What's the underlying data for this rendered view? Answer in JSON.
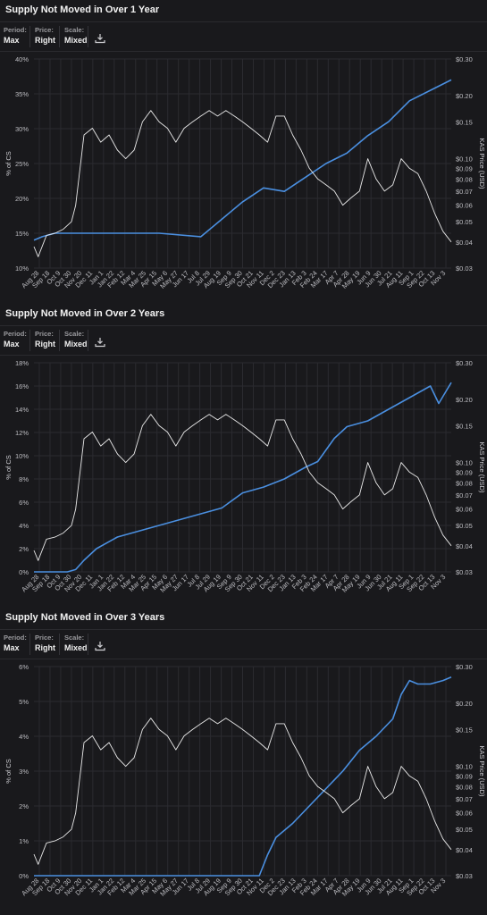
{
  "controls": {
    "period_label": "Period:",
    "period_value": "Max",
    "price_label": "Price:",
    "price_value": "Right",
    "scale_label": "Scale:",
    "scale_value": "Mixed"
  },
  "colors": {
    "supply": "#4a8fe0",
    "price": "#e8e8e8",
    "grid": "#2b2b30",
    "background": "#19191c"
  },
  "chart_data": [
    {
      "type": "line",
      "title": "Supply Not Moved in Over 1 Year",
      "ylabel": "% of CS",
      "y2label": "KAS Price (USD)",
      "ylim": [
        10,
        40
      ],
      "yticks": [
        "10%",
        "15%",
        "20%",
        "25%",
        "30%",
        "35%",
        "40%"
      ],
      "y2scale": "log",
      "y2lim": [
        0.03,
        0.3
      ],
      "y2ticks": [
        "$0.03",
        "$0.04",
        "$0.05",
        "$0.06",
        "$0.07",
        "$0.08",
        "$0.09",
        "$0.10",
        "$0.15",
        "$0.20",
        "$0.30"
      ],
      "x_ticks": [
        "Aug 28",
        "Sep 18",
        "Oct 9",
        "Oct 30",
        "Nov 20",
        "Dec 11",
        "Jan 1",
        "Jan 22",
        "Feb 12",
        "Mar 4",
        "Mar 25",
        "Apr 15",
        "May 6",
        "May 27",
        "Jun 17",
        "Jul 8",
        "Jul 29",
        "Aug 19",
        "Sep 9",
        "Sep 30",
        "Oct 21",
        "Nov 11",
        "Dec 2",
        "Dec 23",
        "Jan 13",
        "Feb 3",
        "Feb 24",
        "Mar 17",
        "Apr 7",
        "Apr 28",
        "May 19",
        "Jun 9",
        "Jun 30",
        "Jul 21",
        "Aug 11",
        "Sep 1",
        "Sep 22",
        "Oct 13",
        "Nov 3"
      ],
      "grid": true,
      "series": [
        {
          "name": "Supply % of CS",
          "axis": "left",
          "x": [
            0,
            2,
            5,
            10,
            20,
            30,
            40,
            50,
            55,
            60,
            65,
            70,
            75,
            80,
            85,
            90,
            95,
            100
          ],
          "values": [
            14,
            14.5,
            15,
            15,
            15,
            15,
            14.5,
            19.5,
            21.5,
            21,
            23,
            25,
            26.5,
            29,
            31,
            34,
            35.5,
            37
          ]
        },
        {
          "name": "KAS Price",
          "axis": "right",
          "x": [
            0,
            1,
            3,
            5,
            7,
            9,
            10,
            12,
            14,
            16,
            18,
            20,
            22,
            24,
            26,
            28,
            30,
            32,
            34,
            36,
            38,
            40,
            42,
            44,
            46,
            48,
            50,
            52,
            54,
            56,
            58,
            60,
            62,
            64,
            66,
            68,
            70,
            72,
            74,
            76,
            78,
            80,
            82,
            84,
            86,
            88,
            90,
            92,
            94,
            96,
            98,
            100
          ],
          "values": [
            0.038,
            0.034,
            0.043,
            0.044,
            0.046,
            0.05,
            0.06,
            0.13,
            0.14,
            0.12,
            0.13,
            0.11,
            0.1,
            0.11,
            0.15,
            0.17,
            0.15,
            0.14,
            0.12,
            0.14,
            0.15,
            0.16,
            0.17,
            0.16,
            0.17,
            0.16,
            0.15,
            0.14,
            0.13,
            0.12,
            0.16,
            0.16,
            0.13,
            0.11,
            0.09,
            0.08,
            0.075,
            0.07,
            0.06,
            0.065,
            0.07,
            0.1,
            0.08,
            0.07,
            0.075,
            0.1,
            0.09,
            0.085,
            0.07,
            0.055,
            0.045,
            0.04
          ]
        }
      ]
    },
    {
      "type": "line",
      "title": "Supply Not Moved in Over 2 Years",
      "ylabel": "% of CS",
      "y2label": "KAS Price (USD)",
      "ylim": [
        0,
        18
      ],
      "yticks": [
        "0%",
        "2%",
        "4%",
        "6%",
        "8%",
        "10%",
        "12%",
        "14%",
        "16%",
        "18%"
      ],
      "y2scale": "log",
      "y2lim": [
        0.03,
        0.3
      ],
      "y2ticks": [
        "$0.03",
        "$0.04",
        "$0.05",
        "$0.06",
        "$0.07",
        "$0.08",
        "$0.09",
        "$0.10",
        "$0.15",
        "$0.20",
        "$0.30"
      ],
      "x_ticks": [
        "Aug 28",
        "Sep 18",
        "Oct 9",
        "Oct 30",
        "Nov 20",
        "Dec 11",
        "Jan 1",
        "Jan 22",
        "Feb 12",
        "Mar 4",
        "Mar 25",
        "Apr 15",
        "May 6",
        "May 27",
        "Jun 17",
        "Jul 8",
        "Jul 29",
        "Aug 19",
        "Sep 9",
        "Sep 30",
        "Oct 21",
        "Nov 11",
        "Dec 2",
        "Dec 23",
        "Jan 13",
        "Feb 3",
        "Feb 24",
        "Mar 17",
        "Apr 7",
        "Apr 28",
        "May 19",
        "Jun 9",
        "Jun 30",
        "Jul 21",
        "Aug 11",
        "Sep 1",
        "Sep 22",
        "Oct 13",
        "Nov 3"
      ],
      "grid": true,
      "series": [
        {
          "name": "Supply % of CS",
          "axis": "left",
          "x": [
            0,
            8,
            10,
            12,
            15,
            20,
            30,
            40,
            45,
            50,
            55,
            60,
            65,
            68,
            70,
            72,
            75,
            80,
            85,
            90,
            95,
            97,
            100
          ],
          "values": [
            0,
            0,
            0.2,
            1,
            2,
            3,
            4,
            5,
            5.5,
            6.8,
            7.3,
            8,
            9,
            9.5,
            10.5,
            11.5,
            12.5,
            13,
            14,
            15,
            16,
            14.5,
            16.3
          ]
        },
        {
          "name": "KAS Price",
          "axis": "right",
          "x": [
            0,
            1,
            3,
            5,
            7,
            9,
            10,
            12,
            14,
            16,
            18,
            20,
            22,
            24,
            26,
            28,
            30,
            32,
            34,
            36,
            38,
            40,
            42,
            44,
            46,
            48,
            50,
            52,
            54,
            56,
            58,
            60,
            62,
            64,
            66,
            68,
            70,
            72,
            74,
            76,
            78,
            80,
            82,
            84,
            86,
            88,
            90,
            92,
            94,
            96,
            98,
            100
          ],
          "values": [
            0.038,
            0.034,
            0.043,
            0.044,
            0.046,
            0.05,
            0.06,
            0.13,
            0.14,
            0.12,
            0.13,
            0.11,
            0.1,
            0.11,
            0.15,
            0.17,
            0.15,
            0.14,
            0.12,
            0.14,
            0.15,
            0.16,
            0.17,
            0.16,
            0.17,
            0.16,
            0.15,
            0.14,
            0.13,
            0.12,
            0.16,
            0.16,
            0.13,
            0.11,
            0.09,
            0.08,
            0.075,
            0.07,
            0.06,
            0.065,
            0.07,
            0.1,
            0.08,
            0.07,
            0.075,
            0.1,
            0.09,
            0.085,
            0.07,
            0.055,
            0.045,
            0.04
          ]
        }
      ]
    },
    {
      "type": "line",
      "title": "Supply Not Moved in Over 3 Years",
      "ylabel": "% of CS",
      "y2label": "KAS Price (USD)",
      "ylim": [
        0,
        6
      ],
      "yticks": [
        "0%",
        "1%",
        "2%",
        "3%",
        "4%",
        "5%",
        "6%"
      ],
      "y2scale": "log",
      "y2lim": [
        0.03,
        0.3
      ],
      "y2ticks": [
        "$0.03",
        "$0.04",
        "$0.05",
        "$0.06",
        "$0.07",
        "$0.08",
        "$0.09",
        "$0.10",
        "$0.15",
        "$0.20",
        "$0.30"
      ],
      "x_ticks": [
        "Aug 28",
        "Sep 18",
        "Oct 9",
        "Oct 30",
        "Nov 20",
        "Dec 11",
        "Jan 1",
        "Jan 22",
        "Feb 12",
        "Mar 4",
        "Mar 25",
        "Apr 15",
        "May 6",
        "May 27",
        "Jun 17",
        "Jul 8",
        "Jul 29",
        "Aug 19",
        "Sep 9",
        "Sep 30",
        "Oct 21",
        "Nov 11",
        "Dec 2",
        "Dec 23",
        "Jan 13",
        "Feb 3",
        "Feb 24",
        "Mar 17",
        "Apr 7",
        "Apr 28",
        "May 19",
        "Jun 9",
        "Jun 30",
        "Jul 21",
        "Aug 11",
        "Sep 1",
        "Sep 22",
        "Oct 13",
        "Nov 3"
      ],
      "grid": true,
      "series": [
        {
          "name": "Supply % of CS",
          "axis": "left",
          "x": [
            0,
            30,
            54,
            56,
            58,
            62,
            66,
            70,
            74,
            78,
            82,
            86,
            88,
            90,
            92,
            95,
            98,
            100
          ],
          "values": [
            0,
            0,
            0,
            0.6,
            1.1,
            1.5,
            2,
            2.5,
            3,
            3.6,
            4,
            4.5,
            5.2,
            5.6,
            5.5,
            5.5,
            5.6,
            5.7
          ]
        },
        {
          "name": "KAS Price",
          "axis": "right",
          "x": [
            0,
            1,
            3,
            5,
            7,
            9,
            10,
            12,
            14,
            16,
            18,
            20,
            22,
            24,
            26,
            28,
            30,
            32,
            34,
            36,
            38,
            40,
            42,
            44,
            46,
            48,
            50,
            52,
            54,
            56,
            58,
            60,
            62,
            64,
            66,
            68,
            70,
            72,
            74,
            76,
            78,
            80,
            82,
            84,
            86,
            88,
            90,
            92,
            94,
            96,
            98,
            100
          ],
          "values": [
            0.038,
            0.034,
            0.043,
            0.044,
            0.046,
            0.05,
            0.06,
            0.13,
            0.14,
            0.12,
            0.13,
            0.11,
            0.1,
            0.11,
            0.15,
            0.17,
            0.15,
            0.14,
            0.12,
            0.14,
            0.15,
            0.16,
            0.17,
            0.16,
            0.17,
            0.16,
            0.15,
            0.14,
            0.13,
            0.12,
            0.16,
            0.16,
            0.13,
            0.11,
            0.09,
            0.08,
            0.075,
            0.07,
            0.06,
            0.065,
            0.07,
            0.1,
            0.08,
            0.07,
            0.075,
            0.1,
            0.09,
            0.085,
            0.07,
            0.055,
            0.045,
            0.04
          ]
        }
      ]
    }
  ]
}
